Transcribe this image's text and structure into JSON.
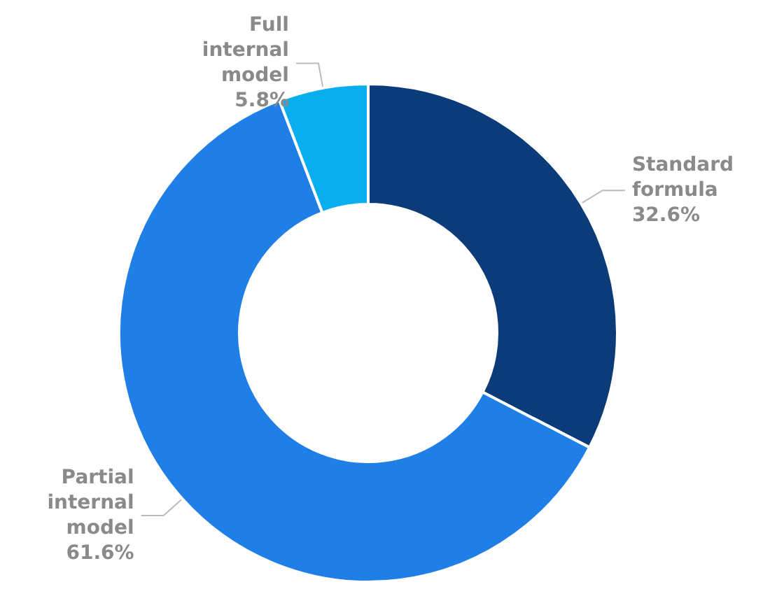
{
  "chart_data": {
    "type": "donut",
    "categories": [
      "Standard formula",
      "Partial internal model",
      "Full internal model"
    ],
    "values": [
      32.6,
      61.6,
      5.8
    ],
    "colors": [
      "#0b3b78",
      "#1f7fe6",
      "#0aaeef"
    ],
    "value_labels": [
      "32.6%",
      "61.6%",
      "5.8%"
    ]
  }
}
